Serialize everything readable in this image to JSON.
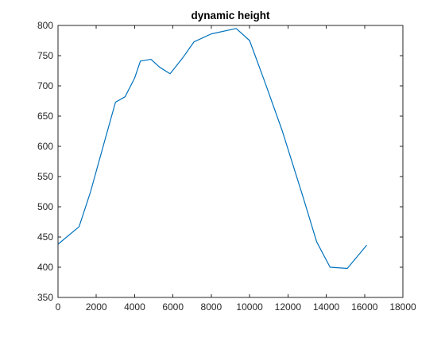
{
  "chart_data": {
    "type": "line",
    "title": "dynamic height",
    "xlabel": "",
    "ylabel": "",
    "xlim": [
      0,
      18000
    ],
    "ylim": [
      350,
      800
    ],
    "xticks": [
      0,
      2000,
      4000,
      6000,
      8000,
      10000,
      12000,
      14000,
      16000,
      18000
    ],
    "yticks": [
      350,
      400,
      450,
      500,
      550,
      600,
      650,
      700,
      750,
      800
    ],
    "xtick_labels": [
      "0",
      "2000",
      "4000",
      "6000",
      "8000",
      "10000",
      "12000",
      "14000",
      "16000",
      "18000"
    ],
    "ytick_labels": [
      "350",
      "400",
      "450",
      "500",
      "550",
      "600",
      "650",
      "700",
      "750",
      "800"
    ],
    "grid": false,
    "box": true,
    "series": [
      {
        "color": "#0072BD",
        "x": [
          0,
          1100,
          1700,
          2400,
          3000,
          3500,
          4000,
          4300,
          4850,
          5300,
          5850,
          6500,
          7100,
          8000,
          9300,
          10000,
          10800,
          11700,
          12800,
          13500,
          14200,
          15100,
          16100
        ],
        "y": [
          438,
          467,
          525,
          605,
          673,
          682,
          713,
          741,
          744,
          731,
          720,
          746,
          773,
          786,
          795,
          775,
          706,
          626,
          515,
          442,
          400,
          398,
          436
        ]
      }
    ]
  }
}
